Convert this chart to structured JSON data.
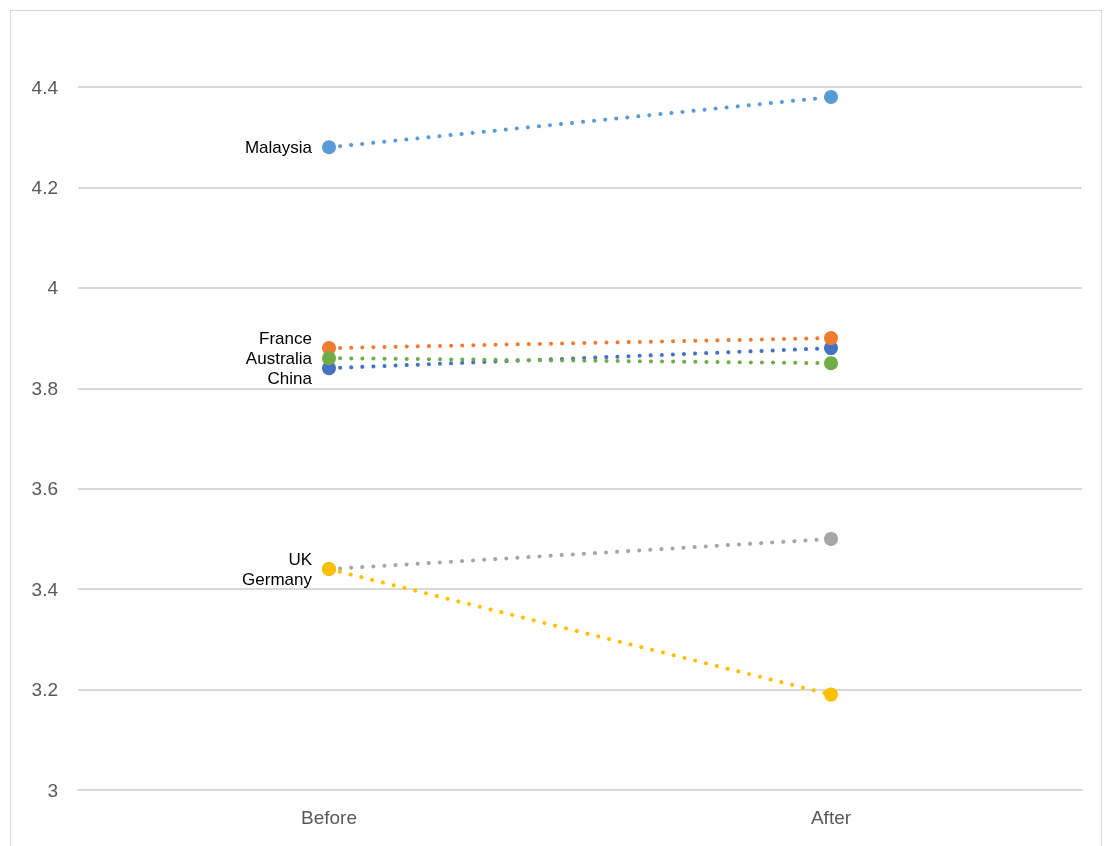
{
  "chart_data": {
    "type": "line",
    "categories": [
      "Before",
      "After"
    ],
    "series": [
      {
        "name": "China",
        "color": "#4472c4",
        "values": [
          3.84,
          3.88
        ]
      },
      {
        "name": "France",
        "color": "#ed7d31",
        "values": [
          3.88,
          3.9
        ]
      },
      {
        "name": "UK",
        "color": "#a5a5a5",
        "values": [
          3.44,
          3.5
        ]
      },
      {
        "name": "Germany",
        "color": "#ffc000",
        "values": [
          3.44,
          3.19
        ]
      },
      {
        "name": "Malaysia",
        "color": "#5b9bd5",
        "values": [
          4.28,
          4.38
        ]
      },
      {
        "name": "Australia",
        "color": "#70ad47",
        "values": [
          3.86,
          3.85
        ]
      }
    ],
    "ylim": [
      3,
      4.4
    ],
    "yticks": [
      3,
      3.2,
      3.4,
      3.6,
      3.8,
      4,
      4.2,
      4.4
    ],
    "grid": "y",
    "legend": false,
    "marker": "circle",
    "line_style": "dotted"
  }
}
